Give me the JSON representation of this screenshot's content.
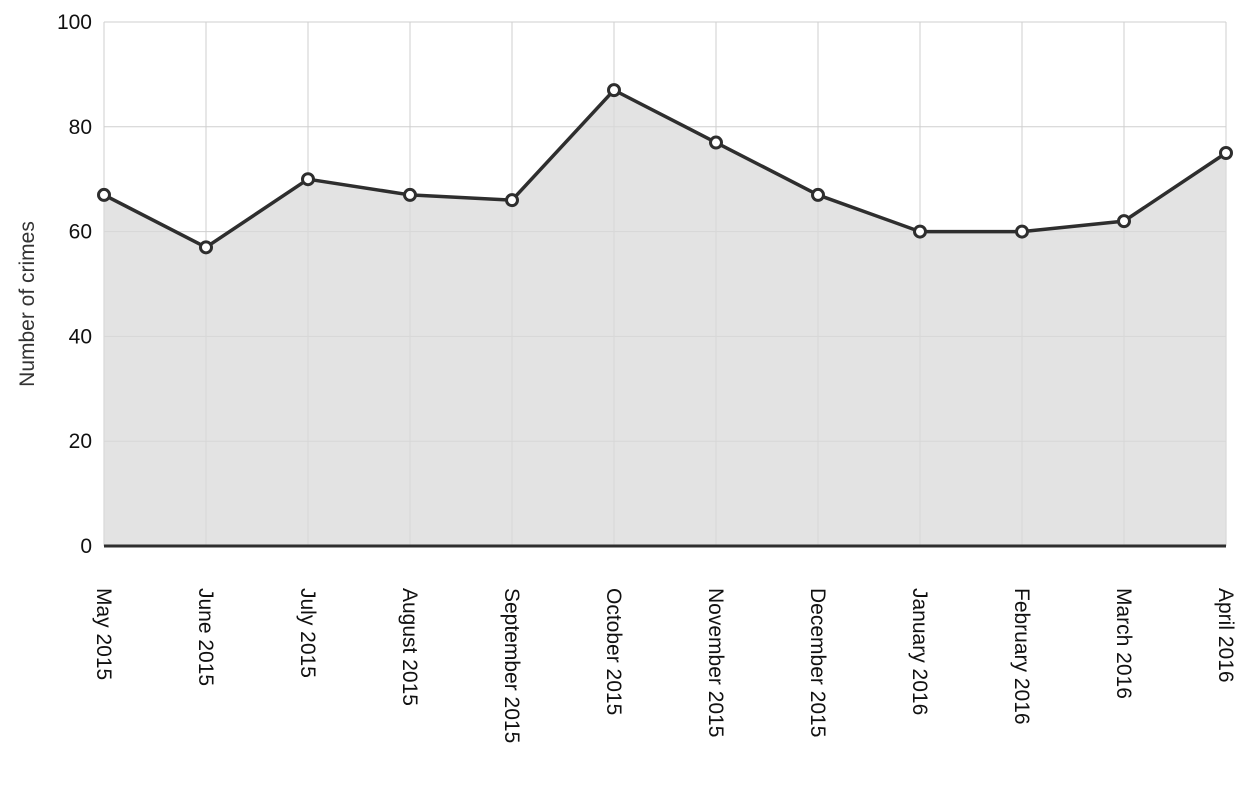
{
  "chart_data": {
    "type": "area",
    "title": "",
    "xlabel": "",
    "ylabel": "Number of crimes",
    "categories": [
      "May 2015",
      "June 2015",
      "July 2015",
      "August 2015",
      "September 2015",
      "October 2015",
      "November 2015",
      "December 2015",
      "January 2016",
      "February 2016",
      "March 2016",
      "April 2016"
    ],
    "series": [
      {
        "values": [
          67,
          57,
          70,
          67,
          66,
          87,
          77,
          67,
          60,
          60,
          62,
          75
        ]
      }
    ],
    "ylim": [
      0,
      100
    ],
    "yticks": [
      0,
      20,
      40,
      60,
      80,
      100
    ],
    "grid": true,
    "legend": "none",
    "colors": {
      "line": "#2e2e2e",
      "fill": "#d9d9d9",
      "grid": "#cfcfcf",
      "axis": "#2e2e2e",
      "marker_fill": "#ffffff"
    }
  }
}
